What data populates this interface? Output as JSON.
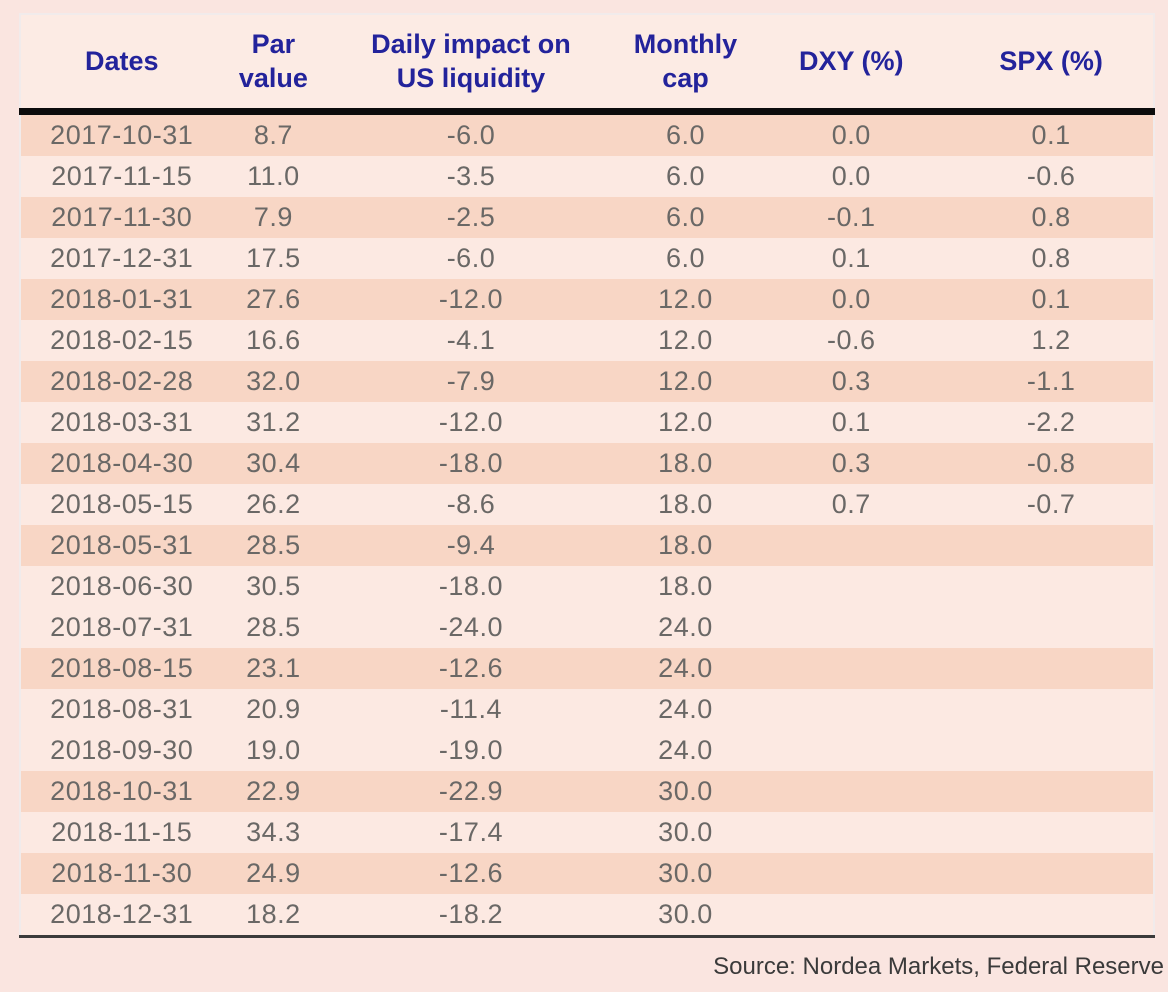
{
  "table": {
    "header": {
      "columns": [
        {
          "id": "dates",
          "label": "Dates"
        },
        {
          "id": "par_value",
          "label": "Par\nvalue"
        },
        {
          "id": "daily_impact",
          "label": "Daily impact on\nUS liquidity"
        },
        {
          "id": "monthly_cap",
          "label": "Monthly\ncap"
        },
        {
          "id": "dxy",
          "label": "DXY (%)"
        },
        {
          "id": "spx",
          "label": "SPX (%)"
        }
      ]
    },
    "shaded_row_indices": [
      0,
      2,
      4,
      6,
      8,
      10,
      13,
      16,
      18
    ]
  },
  "chart_data": {
    "type": "table",
    "columns": [
      "Dates",
      "Par value",
      "Daily impact on US liquidity",
      "Monthly cap",
      "DXY (%)",
      "SPX (%)"
    ],
    "rows": [
      [
        "2017-10-31",
        8.7,
        -6.0,
        6.0,
        0.0,
        0.1
      ],
      [
        "2017-11-15",
        11.0,
        -3.5,
        6.0,
        0.0,
        -0.6
      ],
      [
        "2017-11-30",
        7.9,
        -2.5,
        6.0,
        -0.1,
        0.8
      ],
      [
        "2017-12-31",
        17.5,
        -6.0,
        6.0,
        0.1,
        0.8
      ],
      [
        "2018-01-31",
        27.6,
        -12.0,
        12.0,
        0.0,
        0.1
      ],
      [
        "2018-02-15",
        16.6,
        -4.1,
        12.0,
        -0.6,
        1.2
      ],
      [
        "2018-02-28",
        32.0,
        -7.9,
        12.0,
        0.3,
        -1.1
      ],
      [
        "2018-03-31",
        31.2,
        -12.0,
        12.0,
        0.1,
        -2.2
      ],
      [
        "2018-04-30",
        30.4,
        -18.0,
        18.0,
        0.3,
        -0.8
      ],
      [
        "2018-05-15",
        26.2,
        -8.6,
        18.0,
        0.7,
        -0.7
      ],
      [
        "2018-05-31",
        28.5,
        -9.4,
        18.0,
        null,
        null
      ],
      [
        "2018-06-30",
        30.5,
        -18.0,
        18.0,
        null,
        null
      ],
      [
        "2018-07-31",
        28.5,
        -24.0,
        24.0,
        null,
        null
      ],
      [
        "2018-08-15",
        23.1,
        -12.6,
        24.0,
        null,
        null
      ],
      [
        "2018-08-31",
        20.9,
        -11.4,
        24.0,
        null,
        null
      ],
      [
        "2018-09-30",
        19.0,
        -19.0,
        24.0,
        null,
        null
      ],
      [
        "2018-10-31",
        22.9,
        -22.9,
        30.0,
        null,
        null
      ],
      [
        "2018-11-15",
        34.3,
        -17.4,
        30.0,
        null,
        null
      ],
      [
        "2018-11-30",
        24.9,
        -12.6,
        30.0,
        null,
        null
      ],
      [
        "2018-12-31",
        18.2,
        -18.2,
        30.0,
        null,
        null
      ]
    ],
    "source": "Source: Nordea Markets, Federal Reserve"
  },
  "footer": {
    "source": "Source: Nordea Markets, Federal Reserve"
  },
  "colors": {
    "page_background": "#fae5e0",
    "header_background": "#fcebe4",
    "row_light": "#fce9e2",
    "row_shaded": "#f8d6c5",
    "header_text": "#23239b",
    "body_text": "#6a6866",
    "top_rule": "#0c0c0c",
    "bottom_rule": "#3b3b3b",
    "card_border": "#f1ebeb"
  }
}
